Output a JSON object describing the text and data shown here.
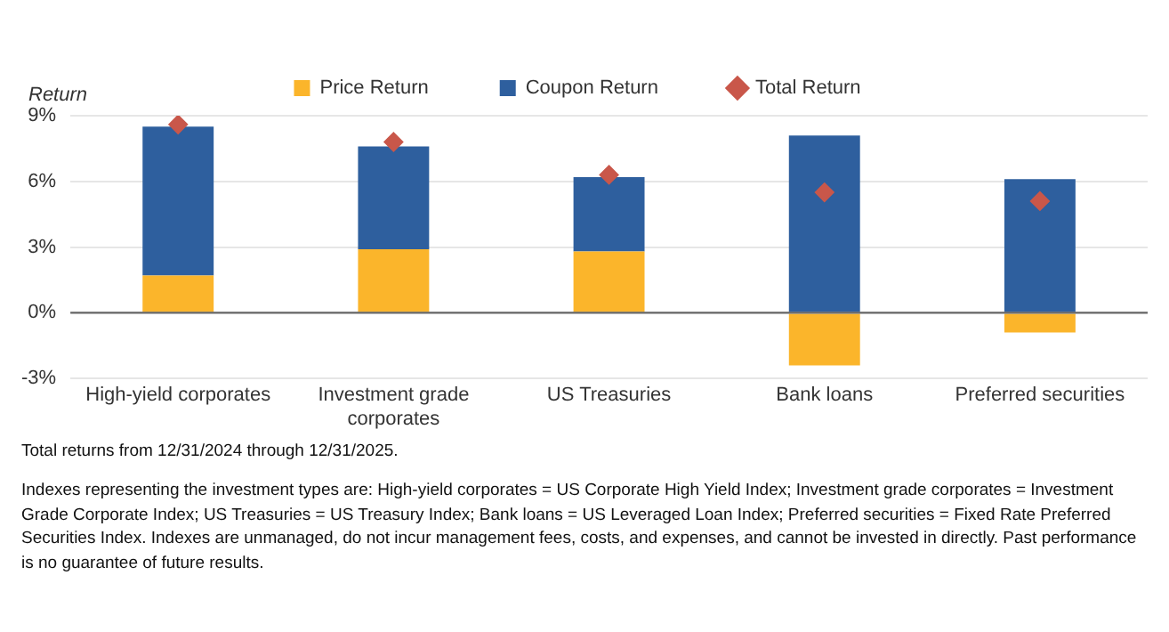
{
  "chart_data": {
    "type": "bar",
    "stacked": true,
    "ylabel": "Return",
    "categories": [
      "High-yield corporates",
      "Investment grade corporates",
      "US Treasuries",
      "Bank loans",
      "Preferred securities"
    ],
    "series": [
      {
        "name": "Price Return",
        "color": "#fbb52b",
        "values": [
          1.7,
          2.9,
          2.8,
          -2.4,
          -0.9
        ]
      },
      {
        "name": "Coupon Return",
        "color": "#2e5f9e",
        "values": [
          6.8,
          4.7,
          3.4,
          8.1,
          6.1
        ]
      },
      {
        "name": "Total Return",
        "type": "scatter",
        "marker": "diamond",
        "color": "#c9574a",
        "x": [
          "High-yield corporates",
          "Investment grade corporates",
          "US Treasuries",
          "Bank loans",
          "Preferred securities"
        ],
        "values": [
          8.6,
          7.8,
          6.3,
          5.5,
          5.1
        ]
      }
    ],
    "ylim": [
      -3,
      9
    ],
    "yticks": [
      {
        "value": -3,
        "label": "-3%"
      },
      {
        "value": 0,
        "label": "0%"
      },
      {
        "value": 3,
        "label": "3%"
      },
      {
        "value": 6,
        "label": "6%"
      },
      {
        "value": 9,
        "label": "9%"
      }
    ],
    "grid": "y",
    "legend": "top",
    "annotations": [
      "Total returns from 12/31/2024 through 12/31/2025.",
      "Indexes representing the investment types are: High-yield corporates = US Corporate High Yield Index; Investment grade corporates = Investment Grade Corporate Index; US Treasuries = US Treasury Index; Bank loans = US Leveraged Loan Index; Preferred securities = Fixed Rate Preferred Securities Index. Indexes are unmanaged, do not incur management fees, costs, and expenses, and cannot be invested in directly. Past performance is no guarantee of future results."
    ]
  }
}
